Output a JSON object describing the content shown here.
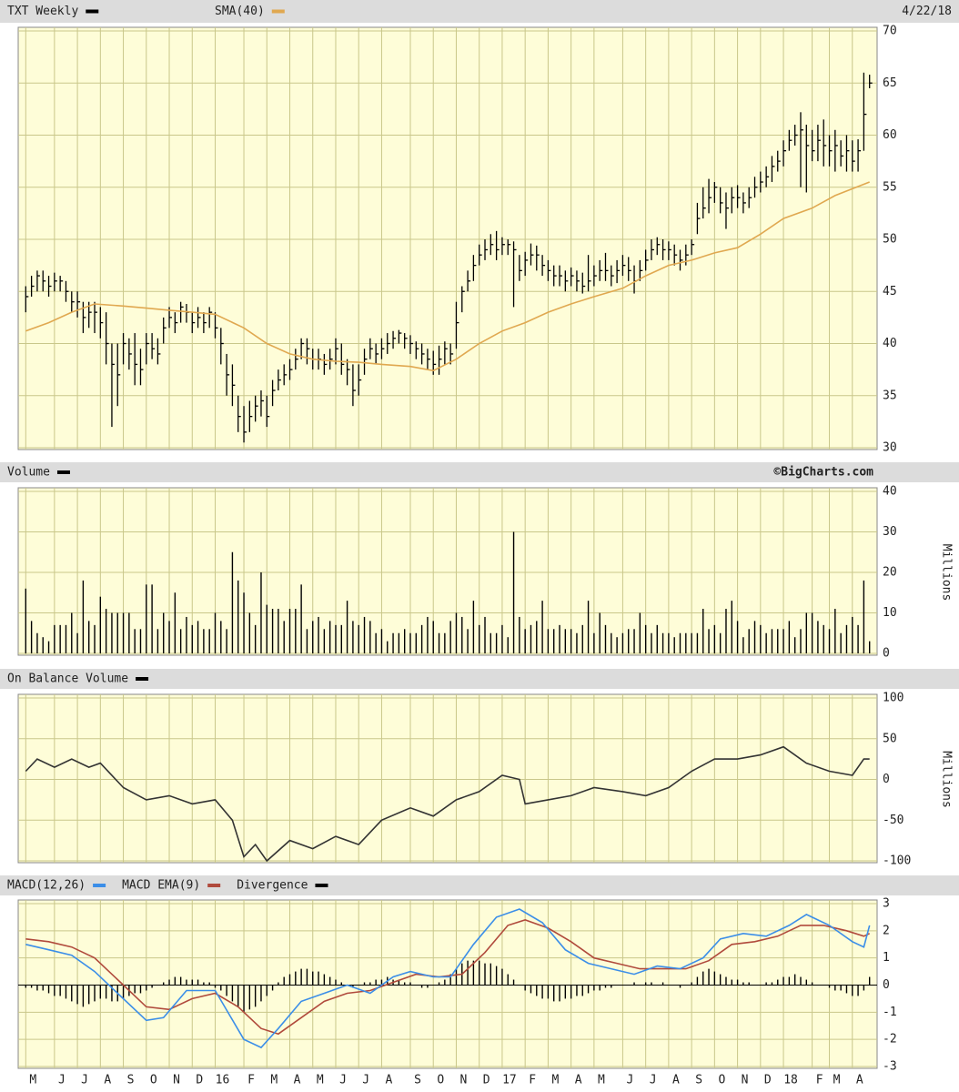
{
  "chart_data": [
    {
      "type": "ohlc",
      "title": "TXT Weekly",
      "color": "#000000",
      "date": "4/22/18",
      "high": [
        45.5,
        46.5,
        47,
        47,
        46.5,
        46.8,
        46.5,
        46,
        45,
        45,
        44,
        44,
        44,
        43.5,
        43,
        40,
        40,
        41,
        40.5,
        41,
        39.5,
        41,
        41,
        40.5,
        42.5,
        43.5,
        43,
        44,
        43.8,
        43,
        43.5,
        43,
        43.5,
        43,
        41.5,
        39,
        38,
        35,
        34,
        34.5,
        35,
        35.5,
        35,
        36.5,
        37.5,
        38,
        38.5,
        39.5,
        40.5,
        40.5,
        39.5,
        39.5,
        39,
        39.5,
        40.5,
        40,
        38.5,
        38,
        38,
        39.5,
        40.5,
        40,
        40.5,
        41,
        41.2,
        41.3,
        41,
        40.8,
        40.2,
        40,
        39.5,
        39.3,
        39.8,
        40.2,
        40,
        44,
        45.5,
        47,
        48.5,
        49.5,
        50,
        50.5,
        50.8,
        50.2,
        50,
        49.8,
        48.5,
        48.8,
        49.6,
        49.4,
        48.5,
        48,
        47.5,
        47.5,
        47,
        47.3,
        47,
        46.8,
        48.5,
        47.5,
        48,
        48.7,
        47.5,
        48,
        48.5,
        48.3,
        47.5,
        48,
        49,
        50,
        50.2,
        50,
        49.8,
        49.5,
        49,
        49.5,
        50,
        53.5,
        55,
        55.8,
        55.5,
        55,
        54.5,
        55,
        55.2,
        54.5,
        55,
        56,
        56.5,
        57,
        58,
        58.5,
        59.5,
        60.5,
        61,
        62.2,
        61,
        60.5,
        61,
        61.5,
        60,
        60.5,
        59.5,
        60,
        59.5,
        59.6,
        66,
        65.8
      ],
      "low": [
        43,
        44.5,
        45,
        45,
        44.5,
        45,
        45,
        44,
        43,
        42.5,
        41,
        41.5,
        41,
        40.5,
        38,
        32,
        34,
        38,
        37.5,
        36,
        36,
        38,
        38.5,
        38,
        40,
        41.5,
        41,
        42,
        42,
        41,
        41.5,
        41,
        41.5,
        40.5,
        38,
        35,
        34,
        31.5,
        30.5,
        31.5,
        32.5,
        33,
        32,
        34,
        35.5,
        36,
        36.5,
        37.5,
        38.5,
        38,
        37.5,
        37.5,
        37,
        37.5,
        38,
        37,
        36,
        34,
        35,
        37,
        38.5,
        38,
        38.5,
        39,
        39.5,
        40,
        39.5,
        39,
        38.5,
        38,
        37.5,
        37,
        37,
        38,
        38,
        39.5,
        43,
        45,
        46,
        47.5,
        48,
        48.5,
        48,
        48.5,
        48.5,
        43.5,
        46,
        46.5,
        47.5,
        47,
        46.5,
        46,
        45.5,
        45.5,
        45,
        45.5,
        45,
        44.8,
        45,
        45.5,
        46,
        46,
        45.5,
        45.8,
        46.5,
        46,
        44.8,
        46,
        47,
        48,
        48.5,
        48,
        48,
        47.5,
        47,
        47.5,
        48.5,
        50.5,
        52,
        52.5,
        53.5,
        52.5,
        51,
        52.5,
        53,
        52.5,
        53,
        54,
        54.5,
        55,
        55.5,
        56.5,
        57,
        58.5,
        59,
        55,
        54.5,
        57.5,
        57.5,
        57,
        57,
        56.5,
        57,
        56.5,
        56.5,
        56.5,
        58.5,
        64.5
      ],
      "close": [
        44.5,
        45.5,
        46.5,
        46,
        45.5,
        46,
        46,
        45,
        44,
        44,
        42.5,
        43,
        43,
        42,
        40,
        38,
        37,
        40,
        39,
        38,
        37.5,
        40,
        39.5,
        39,
        41.5,
        42.5,
        42,
        43.5,
        43,
        42,
        42.5,
        42,
        43,
        41.5,
        40,
        37,
        36,
        33,
        31.5,
        33,
        34,
        34.5,
        33,
        35.5,
        36.5,
        37,
        37.5,
        38.5,
        40,
        39.5,
        38.5,
        38.5,
        38,
        38.5,
        39.5,
        38,
        37.5,
        35.5,
        36.5,
        38.5,
        39.5,
        39,
        39.5,
        40,
        40.5,
        41,
        40.5,
        40,
        39.5,
        39,
        38.5,
        38,
        38.5,
        39.5,
        39,
        42,
        45,
        46,
        47.5,
        48.5,
        49,
        49.5,
        49,
        49.5,
        49.5,
        49,
        47,
        48,
        48.5,
        48.5,
        47.5,
        47,
        46.5,
        46.5,
        46,
        46.5,
        46,
        45.5,
        46,
        46.5,
        47,
        47,
        46.5,
        47,
        47.5,
        47,
        46,
        47,
        48,
        49,
        49.5,
        49,
        49,
        48.5,
        48,
        48.5,
        49.5,
        52,
        53,
        54,
        55,
        53.5,
        53,
        54,
        54,
        53.5,
        54,
        55,
        55.5,
        56,
        57,
        57.5,
        58.5,
        59.5,
        60,
        60.5,
        59,
        58.5,
        59.5,
        59,
        58.5,
        59,
        58,
        58.5,
        57.5,
        58.5,
        62,
        65
      ],
      "series": [
        {
          "name": "SMA(40)",
          "color": "#e0a850",
          "x": [
            0,
            4,
            8,
            12,
            17,
            21,
            25,
            29,
            33,
            38,
            42,
            46,
            50,
            54,
            58,
            62,
            67,
            71,
            75,
            79,
            83,
            87,
            91,
            95,
            99,
            104,
            108,
            112,
            116,
            120,
            124,
            128,
            132,
            137,
            141,
            147
          ],
          "values": [
            41.2,
            42,
            43,
            43.8,
            43.6,
            43.4,
            43.2,
            43,
            42.8,
            41.5,
            40,
            39,
            38.5,
            38.3,
            38.2,
            38,
            37.8,
            37.4,
            38.5,
            40,
            41.2,
            42,
            43,
            43.8,
            44.5,
            45.3,
            46.5,
            47.5,
            48,
            48.7,
            49.2,
            50.5,
            52,
            53,
            54.2,
            55.5
          ]
        }
      ],
      "ylim": [
        30,
        70
      ],
      "yticks": [
        30,
        35,
        40,
        45,
        50,
        55,
        60,
        65,
        70
      ],
      "grid": true
    },
    {
      "type": "bar",
      "title": "Volume",
      "color": "#000000",
      "credit": "©BigCharts.com",
      "y_label": "Millions",
      "values": [
        16,
        8,
        5,
        4,
        3,
        7,
        7,
        7,
        10,
        5,
        18,
        8,
        7,
        14,
        11,
        10,
        10,
        10,
        10,
        6,
        6,
        17,
        17,
        6,
        10,
        8,
        15,
        6,
        9,
        7,
        8,
        6,
        6,
        10,
        8,
        6,
        25,
        18,
        15,
        10,
        7,
        20,
        12,
        11,
        11,
        8,
        11,
        11,
        17,
        6,
        8,
        9,
        6,
        8,
        7,
        7,
        13,
        8,
        7,
        9,
        8,
        5,
        6,
        3,
        5,
        5,
        6,
        5,
        5,
        7,
        9,
        8,
        5,
        5,
        8,
        10,
        9,
        6,
        13,
        7,
        9,
        5,
        5,
        7,
        4,
        30,
        9,
        6,
        7,
        8,
        13,
        6,
        6,
        7,
        6,
        6,
        5,
        7,
        13,
        5,
        10,
        7,
        5,
        4,
        5,
        6,
        6,
        10,
        7,
        5,
        7,
        5,
        5,
        4,
        5,
        5,
        5,
        5,
        11,
        6,
        7,
        5,
        11,
        13,
        8,
        4,
        6,
        8,
        7,
        5,
        6,
        6,
        6,
        8,
        4,
        6,
        10,
        10,
        8,
        7,
        6,
        11,
        5,
        7,
        9,
        7,
        18,
        3
      ],
      "ylim": [
        0,
        40
      ],
      "yticks": [
        0,
        10,
        20,
        30,
        40
      ],
      "grid": true
    },
    {
      "type": "line",
      "title": "On Balance Volume",
      "color": "#333333",
      "y_label": "Millions",
      "x": [
        0,
        2,
        5,
        8,
        11,
        13,
        17,
        21,
        25,
        29,
        33,
        36,
        38,
        40,
        42,
        46,
        50,
        54,
        58,
        62,
        67,
        71,
        75,
        79,
        83,
        86,
        87,
        91,
        95,
        99,
        104,
        108,
        112,
        116,
        120,
        124,
        128,
        132,
        136,
        140,
        144,
        146,
        147
      ],
      "values": [
        10,
        25,
        15,
        25,
        15,
        20,
        -10,
        -25,
        -20,
        -30,
        -25,
        -50,
        -95,
        -80,
        -100,
        -75,
        -85,
        -70,
        -80,
        -50,
        -35,
        -45,
        -25,
        -15,
        5,
        0,
        -30,
        -25,
        -20,
        -10,
        -15,
        -20,
        -10,
        10,
        25,
        25,
        30,
        40,
        20,
        10,
        5,
        25,
        25
      ],
      "ylim": [
        -100,
        100
      ],
      "yticks": [
        -100,
        -50,
        0,
        50,
        100
      ],
      "grid": true
    },
    {
      "type": "macd",
      "series": [
        {
          "name": "MACD(12,26)",
          "color": "#3b8ee8",
          "x": [
            0,
            4,
            8,
            12,
            16,
            21,
            24,
            28,
            33,
            38,
            41,
            44,
            48,
            52,
            56,
            60,
            64,
            67,
            71,
            74,
            78,
            82,
            86,
            90,
            94,
            98,
            102,
            106,
            110,
            114,
            118,
            121,
            125,
            129,
            133,
            136,
            140,
            144,
            146,
            147
          ],
          "values": [
            1.5,
            1.3,
            1.1,
            0.5,
            -0.3,
            -1.3,
            -1.2,
            -0.2,
            -0.2,
            -2,
            -2.3,
            -1.6,
            -0.6,
            -0.3,
            0,
            -0.3,
            0.3,
            0.5,
            0.3,
            0.3,
            1.5,
            2.5,
            2.8,
            2.3,
            1.3,
            0.8,
            0.6,
            0.4,
            0.7,
            0.6,
            1,
            1.7,
            1.9,
            1.8,
            2.2,
            2.6,
            2.2,
            1.6,
            1.4,
            2.2
          ]
        },
        {
          "name": "MACD EMA(9)",
          "color": "#b04a3c",
          "x": [
            0,
            4,
            8,
            12,
            17,
            21,
            25,
            29,
            33,
            37,
            41,
            44,
            48,
            52,
            56,
            60,
            64,
            68,
            72,
            76,
            80,
            84,
            87,
            91,
            95,
            99,
            103,
            107,
            111,
            115,
            119,
            123,
            127,
            131,
            135,
            139,
            143,
            146,
            147
          ],
          "values": [
            1.7,
            1.6,
            1.4,
            1,
            0,
            -0.8,
            -0.9,
            -0.5,
            -0.3,
            -0.8,
            -1.6,
            -1.8,
            -1.2,
            -0.6,
            -0.3,
            -0.2,
            0.1,
            0.4,
            0.3,
            0.4,
            1.2,
            2.2,
            2.4,
            2.1,
            1.6,
            1,
            0.8,
            0.6,
            0.6,
            0.6,
            0.9,
            1.5,
            1.6,
            1.8,
            2.2,
            2.2,
            2,
            1.8,
            1.9
          ]
        },
        {
          "name": "Divergence",
          "color": "#000000",
          "values": [
            -0.1,
            -0.1,
            -0.2,
            -0.2,
            -0.3,
            -0.4,
            -0.4,
            -0.5,
            -0.6,
            -0.7,
            -0.8,
            -0.7,
            -0.6,
            -0.5,
            -0.5,
            -0.6,
            -0.6,
            -0.5,
            -0.4,
            -0.3,
            -0.3,
            -0.2,
            -0.1,
            0,
            0.1,
            0.2,
            0.3,
            0.3,
            0.2,
            0.2,
            0.2,
            0.1,
            0.1,
            -0.1,
            -0.2,
            -0.4,
            -0.6,
            -0.8,
            -1,
            -0.9,
            -0.8,
            -0.6,
            -0.4,
            -0.2,
            0.1,
            0.3,
            0.4,
            0.5,
            0.6,
            0.6,
            0.5,
            0.5,
            0.4,
            0.3,
            0.2,
            0.1,
            0,
            -0.1,
            0,
            0.1,
            0.1,
            0.2,
            0.2,
            0.3,
            0.2,
            0.2,
            0.1,
            0.1,
            0,
            -0.1,
            -0.1,
            0,
            0.1,
            0.2,
            0.4,
            0.6,
            0.8,
            0.9,
            0.9,
            0.9,
            0.8,
            0.8,
            0.7,
            0.6,
            0.4,
            0.2,
            0,
            -0.2,
            -0.3,
            -0.4,
            -0.5,
            -0.5,
            -0.6,
            -0.6,
            -0.5,
            -0.5,
            -0.4,
            -0.4,
            -0.3,
            -0.2,
            -0.2,
            -0.1,
            -0.1,
            0,
            0,
            0,
            0.1,
            0,
            0.1,
            0.1,
            0,
            0.1,
            0,
            0,
            -0.1,
            0,
            0.1,
            0.3,
            0.5,
            0.6,
            0.5,
            0.4,
            0.3,
            0.2,
            0.2,
            0.1,
            0.1,
            0,
            0,
            0.1,
            0.1,
            0.2,
            0.3,
            0.3,
            0.4,
            0.3,
            0.2,
            0.1,
            0,
            0,
            -0.1,
            -0.2,
            -0.2,
            -0.3,
            -0.4,
            -0.4,
            -0.2,
            0.3
          ]
        }
      ],
      "ylim": [
        -3,
        3
      ],
      "yticks": [
        -3,
        -2,
        -1,
        0,
        1,
        2,
        3
      ],
      "grid": true,
      "xlim": [
        -1,
        148
      ],
      "xticks": [
        {
          "value": 0,
          "label": "M"
        },
        {
          "value": 5,
          "label": "J"
        },
        {
          "value": 9,
          "label": "J"
        },
        {
          "value": 13,
          "label": "A"
        },
        {
          "value": 17,
          "label": "S"
        },
        {
          "value": 21,
          "label": "O"
        },
        {
          "value": 25,
          "label": "N"
        },
        {
          "value": 29,
          "label": "D"
        },
        {
          "value": 33,
          "label": "16"
        },
        {
          "value": 38,
          "label": "F"
        },
        {
          "value": 42,
          "label": "M"
        },
        {
          "value": 46,
          "label": "A"
        },
        {
          "value": 50,
          "label": "M"
        },
        {
          "value": 54,
          "label": "J"
        },
        {
          "value": 58,
          "label": "J"
        },
        {
          "value": 62,
          "label": "A"
        },
        {
          "value": 67,
          "label": "S"
        },
        {
          "value": 71,
          "label": "O"
        },
        {
          "value": 75,
          "label": "N"
        },
        {
          "value": 79,
          "label": "D"
        },
        {
          "value": 83,
          "label": "17"
        },
        {
          "value": 87,
          "label": "F"
        },
        {
          "value": 91,
          "label": "M"
        },
        {
          "value": 95,
          "label": "A"
        },
        {
          "value": 99,
          "label": "M"
        },
        {
          "value": 104,
          "label": "J"
        },
        {
          "value": 108,
          "label": "J"
        },
        {
          "value": 112,
          "label": "A"
        },
        {
          "value": 116,
          "label": "S"
        },
        {
          "value": 120,
          "label": "O"
        },
        {
          "value": 124,
          "label": "N"
        },
        {
          "value": 128,
          "label": "D"
        },
        {
          "value": 132,
          "label": "18"
        },
        {
          "value": 137,
          "label": "F"
        },
        {
          "value": 140,
          "label": "M"
        },
        {
          "value": 144,
          "label": "A"
        }
      ]
    }
  ]
}
